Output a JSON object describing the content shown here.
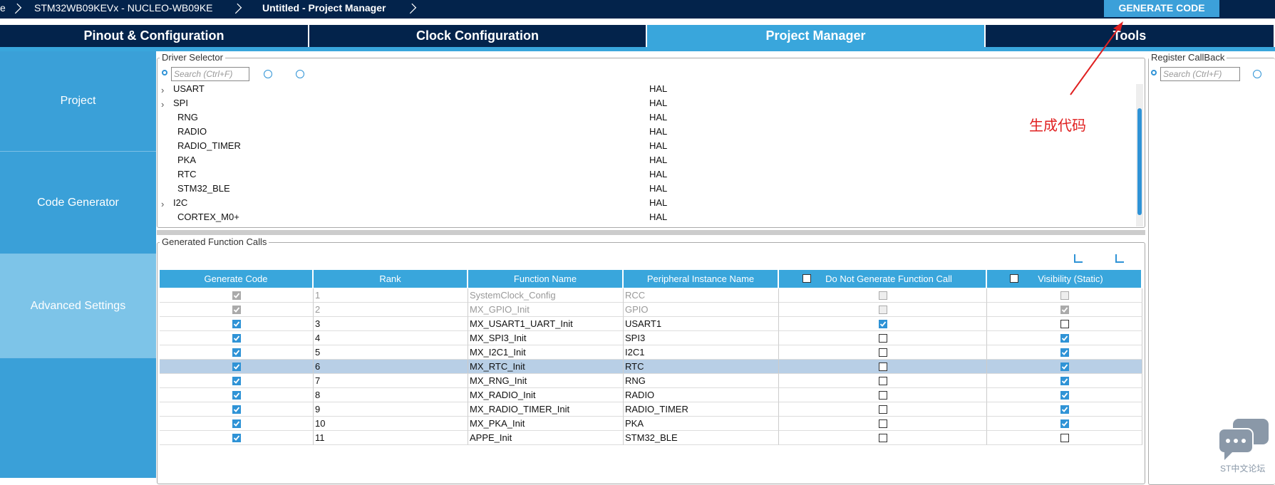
{
  "breadcrumb": [
    "e",
    "STM32WB09KEVx  -  NUCLEO-WB09KE",
    "Untitled - Project Manager"
  ],
  "generate_button": "GENERATE CODE",
  "tabs": [
    "Pinout & Configuration",
    "Clock Configuration",
    "Project Manager",
    "Tools"
  ],
  "active_tab": 2,
  "sidebar": [
    "Project",
    "Code Generator",
    "Advanced Settings"
  ],
  "active_sidebar": 2,
  "driver_selector": {
    "title": "Driver Selector",
    "search_placeholder": "Search (Ctrl+F)",
    "rows": [
      {
        "name": "USART",
        "driver": "HAL",
        "expandable": true
      },
      {
        "name": "SPI",
        "driver": "HAL",
        "expandable": true
      },
      {
        "name": "RNG",
        "driver": "HAL",
        "expandable": false
      },
      {
        "name": "RADIO",
        "driver": "HAL",
        "expandable": false
      },
      {
        "name": "RADIO_TIMER",
        "driver": "HAL",
        "expandable": false
      },
      {
        "name": "PKA",
        "driver": "HAL",
        "expandable": false
      },
      {
        "name": "RTC",
        "driver": "HAL",
        "expandable": false
      },
      {
        "name": "STM32_BLE",
        "driver": "HAL",
        "expandable": false
      },
      {
        "name": "I2C",
        "driver": "HAL",
        "expandable": true
      },
      {
        "name": "CORTEX_M0+",
        "driver": "HAL",
        "expandable": false
      }
    ]
  },
  "register_callback": {
    "title": "Register CallBack",
    "search_placeholder": "Search (Ctrl+F)"
  },
  "annotation": "生成代码",
  "function_calls": {
    "title": "Generated Function Calls",
    "columns": [
      "Generate Code",
      "Rank",
      "Function Name",
      "Peripheral Instance Name",
      "Do Not Generate Function Call",
      "Visibility (Static)"
    ],
    "selected_row": 5,
    "rows": [
      {
        "generate": true,
        "rank": 1,
        "function": "SystemClock_Config",
        "instance": "RCC",
        "no_call": false,
        "visibility": false,
        "disabled": true
      },
      {
        "generate": true,
        "rank": 2,
        "function": "MX_GPIO_Init",
        "instance": "GPIO",
        "no_call": false,
        "visibility": true,
        "disabled": true
      },
      {
        "generate": true,
        "rank": 3,
        "function": "MX_USART1_UART_Init",
        "instance": "USART1",
        "no_call": true,
        "visibility": false,
        "disabled": false
      },
      {
        "generate": true,
        "rank": 4,
        "function": "MX_SPI3_Init",
        "instance": "SPI3",
        "no_call": false,
        "visibility": true,
        "disabled": false
      },
      {
        "generate": true,
        "rank": 5,
        "function": "MX_I2C1_Init",
        "instance": "I2C1",
        "no_call": false,
        "visibility": true,
        "disabled": false
      },
      {
        "generate": true,
        "rank": 6,
        "function": "MX_RTC_Init",
        "instance": "RTC",
        "no_call": false,
        "visibility": true,
        "disabled": false
      },
      {
        "generate": true,
        "rank": 7,
        "function": "MX_RNG_Init",
        "instance": "RNG",
        "no_call": false,
        "visibility": true,
        "disabled": false
      },
      {
        "generate": true,
        "rank": 8,
        "function": "MX_RADIO_Init",
        "instance": "RADIO",
        "no_call": false,
        "visibility": true,
        "disabled": false
      },
      {
        "generate": true,
        "rank": 9,
        "function": "MX_RADIO_TIMER_Init",
        "instance": "RADIO_TIMER",
        "no_call": false,
        "visibility": true,
        "disabled": false
      },
      {
        "generate": true,
        "rank": 10,
        "function": "MX_PKA_Init",
        "instance": "PKA",
        "no_call": false,
        "visibility": true,
        "disabled": false
      },
      {
        "generate": true,
        "rank": 11,
        "function": "APPE_Init",
        "instance": "STM32_BLE",
        "no_call": false,
        "visibility": false,
        "disabled": false
      }
    ]
  },
  "watermark": "ST中文论坛"
}
